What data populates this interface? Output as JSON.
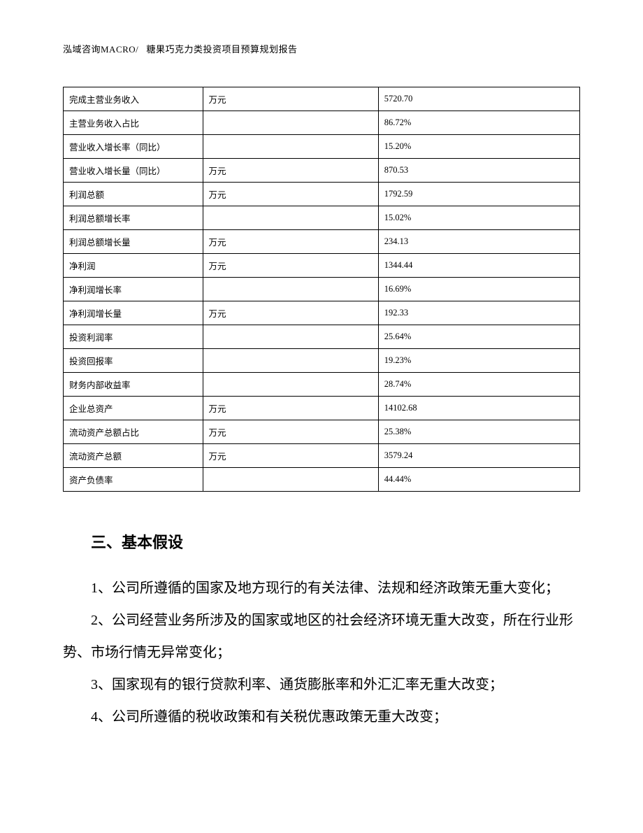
{
  "header": {
    "company": "泓域咨询MACRO/",
    "title": "糖果巧克力类投资项目预算规划报告"
  },
  "table": {
    "rows": [
      {
        "label": "完成主营业务收入",
        "unit": "万元",
        "value": "5720.70"
      },
      {
        "label": "主营业务收入占比",
        "unit": "",
        "value": "86.72%"
      },
      {
        "label": "营业收入增长率（同比）",
        "unit": "",
        "value": "15.20%"
      },
      {
        "label": "营业收入增长量（同比）",
        "unit": "万元",
        "value": "870.53"
      },
      {
        "label": "利润总额",
        "unit": "万元",
        "value": "1792.59"
      },
      {
        "label": "利润总额增长率",
        "unit": "",
        "value": "15.02%"
      },
      {
        "label": "利润总额增长量",
        "unit": "万元",
        "value": "234.13"
      },
      {
        "label": "净利润",
        "unit": "万元",
        "value": "1344.44"
      },
      {
        "label": "净利润增长率",
        "unit": "",
        "value": "16.69%"
      },
      {
        "label": "净利润增长量",
        "unit": "万元",
        "value": "192.33"
      },
      {
        "label": "投资利润率",
        "unit": "",
        "value": "25.64%"
      },
      {
        "label": "投资回报率",
        "unit": "",
        "value": "19.23%"
      },
      {
        "label": "财务内部收益率",
        "unit": "",
        "value": "28.74%"
      },
      {
        "label": "企业总资产",
        "unit": "万元",
        "value": "14102.68"
      },
      {
        "label": "流动资产总额占比",
        "unit": "万元",
        "value": "25.38%"
      },
      {
        "label": "流动资产总额",
        "unit": "万元",
        "value": "3579.24"
      },
      {
        "label": "资产负债率",
        "unit": "",
        "value": "44.44%"
      }
    ]
  },
  "section": {
    "title": "三、基本假设",
    "paragraphs": [
      "1、公司所遵循的国家及地方现行的有关法律、法规和经济政策无重大变化；",
      "2、公司经营业务所涉及的国家或地区的社会经济环境无重大改变，所在行业形势、市场行情无异常变化；",
      "3、国家现有的银行贷款利率、通货膨胀率和外汇汇率无重大改变；",
      "4、公司所遵循的税收政策和有关税优惠政策无重大改变；"
    ]
  }
}
